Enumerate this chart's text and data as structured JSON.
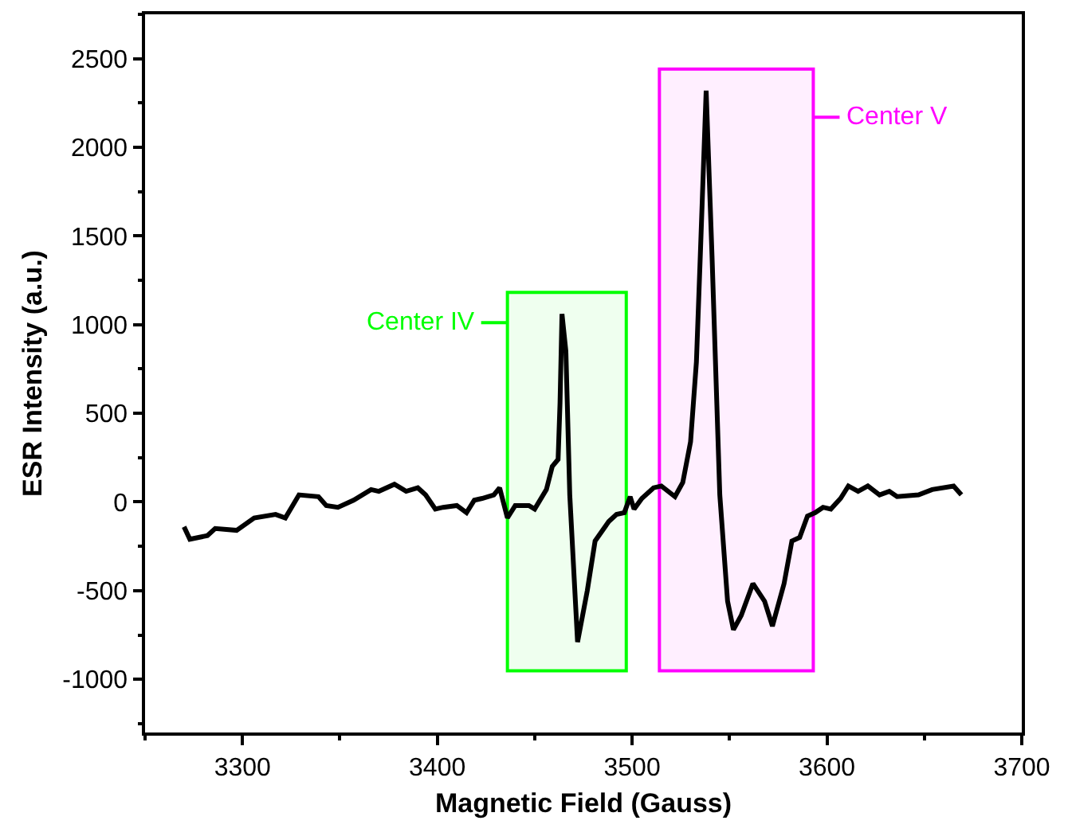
{
  "chart_data": {
    "type": "line",
    "xlabel": "Magnetic Field (Gauss)",
    "ylabel": "ESR Intensity (a.u.)",
    "xlim": [
      3250,
      3700
    ],
    "xticks": [
      3300,
      3400,
      3500,
      3600,
      3700
    ],
    "ylim": [
      -1300,
      2750
    ],
    "yticks": [
      -1000,
      -500,
      0,
      500,
      1000,
      1500,
      2000,
      2500
    ],
    "grid": false,
    "marker": "none",
    "line_style": "solid",
    "series": [
      {
        "color": "#000000",
        "x": [
          3270,
          3273,
          3282,
          3286,
          3297,
          3306,
          3317,
          3322,
          3329,
          3339,
          3343,
          3349,
          3357,
          3366,
          3370,
          3378,
          3384,
          3390,
          3394,
          3399,
          3403,
          3410,
          3415,
          3419,
          3423,
          3429,
          3432,
          3436,
          3440,
          3447,
          3450,
          3456,
          3459,
          3462,
          3463,
          3464,
          3466,
          3468,
          3472,
          3477,
          3481,
          3488,
          3492,
          3496,
          3499,
          3501,
          3505,
          3511,
          3515,
          3522,
          3526,
          3530,
          3533,
          3535,
          3538,
          3541,
          3545,
          3549,
          3552,
          3556,
          3562,
          3568,
          3572,
          3578,
          3582,
          3586,
          3590,
          3594,
          3598,
          3602,
          3607,
          3611,
          3616,
          3621,
          3627,
          3632,
          3636,
          3647,
          3654,
          3665,
          3669
        ],
        "values": [
          -140,
          -210,
          -190,
          -150,
          -160,
          -90,
          -70,
          -90,
          40,
          30,
          -20,
          -30,
          10,
          70,
          60,
          100,
          60,
          80,
          40,
          -40,
          -30,
          -20,
          -60,
          10,
          20,
          40,
          80,
          -90,
          -20,
          -20,
          -40,
          70,
          200,
          240,
          560,
          1060,
          850,
          40,
          -790,
          -500,
          -220,
          -110,
          -70,
          -60,
          30,
          -40,
          20,
          80,
          90,
          30,
          110,
          340,
          790,
          1390,
          2320,
          1390,
          40,
          -560,
          -720,
          -640,
          -460,
          -560,
          -700,
          -460,
          -220,
          -200,
          -80,
          -60,
          -30,
          -40,
          20,
          90,
          60,
          90,
          40,
          60,
          30,
          40,
          70,
          90,
          40
        ]
      }
    ],
    "bands": [
      {
        "axis": "x",
        "from": 3436,
        "to": 3497,
        "label": "Center IV",
        "color": "#00ff00"
      },
      {
        "axis": "x",
        "from": 3514,
        "to": 3593,
        "label": "Center V",
        "color": "#ff00ff"
      }
    ]
  }
}
